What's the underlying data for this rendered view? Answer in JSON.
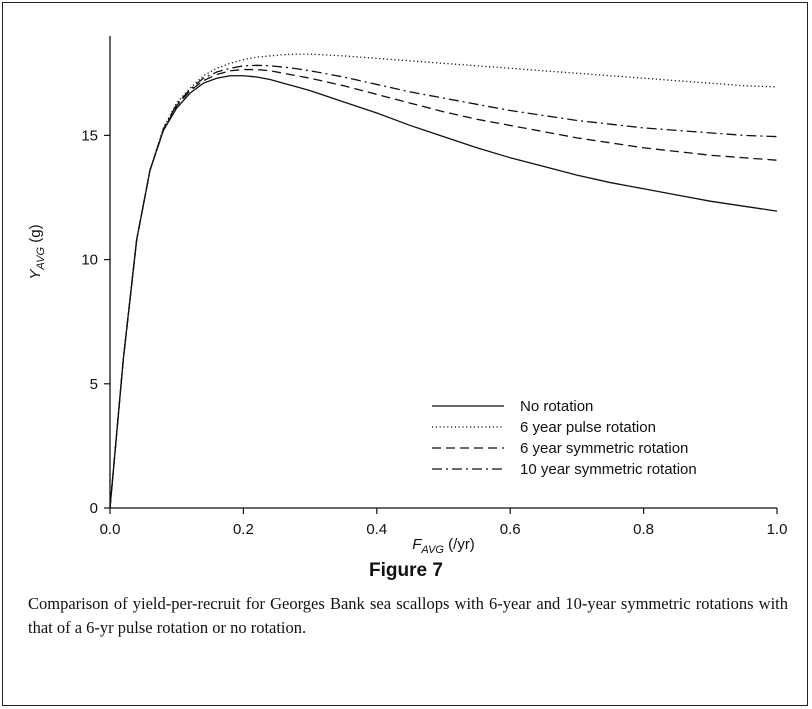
{
  "chart_data": {
    "type": "line",
    "xlabel": {
      "main": "F",
      "sub": "AVG",
      "unit": " (/yr)"
    },
    "ylabel": {
      "main": "Y",
      "sub": "AVG",
      "unit": " (g)"
    },
    "xlim": [
      0,
      1.0
    ],
    "ylim": [
      0,
      19
    ],
    "xticks": [
      "0.0",
      "0.2",
      "0.4",
      "0.6",
      "0.8",
      "1.0"
    ],
    "xtick_values": [
      0,
      0.2,
      0.4,
      0.6,
      0.8,
      1.0
    ],
    "yticks": [
      "0",
      "5",
      "10",
      "15"
    ],
    "ytick_values": [
      0,
      5,
      10,
      15
    ],
    "grid": false,
    "legend_position": "bottom-right",
    "x": [
      0,
      0.02,
      0.04,
      0.06,
      0.08,
      0.1,
      0.12,
      0.14,
      0.16,
      0.18,
      0.2,
      0.22,
      0.24,
      0.26,
      0.28,
      0.3,
      0.35,
      0.4,
      0.45,
      0.5,
      0.55,
      0.6,
      0.65,
      0.7,
      0.75,
      0.8,
      0.85,
      0.9,
      0.95,
      1.0
    ],
    "series": [
      {
        "name": "No rotation",
        "dash": "solid",
        "values": [
          0,
          6.0,
          10.8,
          13.6,
          15.2,
          16.1,
          16.7,
          17.1,
          17.3,
          17.4,
          17.4,
          17.35,
          17.25,
          17.1,
          16.95,
          16.8,
          16.35,
          15.9,
          15.4,
          14.95,
          14.5,
          14.1,
          13.75,
          13.4,
          13.1,
          12.85,
          12.6,
          12.35,
          12.15,
          11.95
        ]
      },
      {
        "name": "6 year pulse rotation",
        "dash": "dotted",
        "values": [
          0,
          6.0,
          10.8,
          13.6,
          15.3,
          16.3,
          16.9,
          17.4,
          17.7,
          17.9,
          18.05,
          18.15,
          18.2,
          18.25,
          18.27,
          18.27,
          18.2,
          18.1,
          18.0,
          17.9,
          17.8,
          17.7,
          17.6,
          17.5,
          17.4,
          17.3,
          17.2,
          17.1,
          17.0,
          16.95
        ]
      },
      {
        "name": "6 year symmetric rotation",
        "dash": "dashed",
        "values": [
          0,
          6.0,
          10.8,
          13.6,
          15.2,
          16.2,
          16.8,
          17.2,
          17.45,
          17.6,
          17.65,
          17.65,
          17.6,
          17.5,
          17.4,
          17.3,
          17.0,
          16.65,
          16.3,
          15.95,
          15.65,
          15.4,
          15.15,
          14.9,
          14.7,
          14.5,
          14.35,
          14.2,
          14.1,
          14.0
        ]
      },
      {
        "name": "10 year symmetric rotation",
        "dash": "dashdot",
        "values": [
          0,
          6.0,
          10.8,
          13.6,
          15.25,
          16.25,
          16.85,
          17.3,
          17.55,
          17.7,
          17.8,
          17.82,
          17.8,
          17.75,
          17.68,
          17.6,
          17.35,
          17.05,
          16.75,
          16.5,
          16.25,
          16.0,
          15.8,
          15.6,
          15.45,
          15.3,
          15.2,
          15.1,
          15.0,
          14.95
        ]
      }
    ]
  },
  "figure": {
    "title": "Figure 7",
    "caption": "Comparison of yield-per-recruit for Georges Bank sea scallops with 6-year and 10-year symmetric rotations with that of a 6-yr pulse rotation or no rotation."
  }
}
